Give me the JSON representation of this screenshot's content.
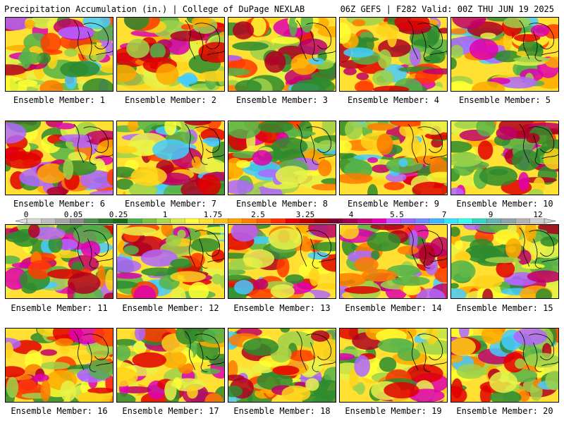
{
  "header": {
    "title": "Precipitation Accumulation (in.) | College of DuPage NEXLAB",
    "run_info": "06Z GEFS | F282 Valid: 00Z THU JUN 19 2025"
  },
  "colorbar": {
    "tick_labels": [
      "0",
      "0.05",
      "0.25",
      "1",
      "1.75",
      "2.5",
      "3.25",
      "4",
      "5.5",
      "7",
      "9",
      "12"
    ],
    "colors": [
      "#d9d9d9",
      "#bfbfbf",
      "#a6a6a6",
      "#8c8c8c",
      "#4f8f4f",
      "#2e7d2e",
      "#1a6b1a",
      "#4caf4c",
      "#7bc043",
      "#a8d84a",
      "#d7ee4a",
      "#ffff33",
      "#ffe033",
      "#ffc21a",
      "#ff9f00",
      "#ff7f00",
      "#ff5a00",
      "#ff2d00",
      "#e60000",
      "#c00000",
      "#990000",
      "#7a0033",
      "#a0004a",
      "#c8007a",
      "#e600b8",
      "#d24cff",
      "#9966ff",
      "#6f8cff",
      "#3fb6ff",
      "#33e6ff",
      "#33ffee",
      "#33d6c6",
      "#66b3b3",
      "#8fa6a6",
      "#b3b3b3",
      "#d0d0d0"
    ]
  },
  "members": [
    {
      "label": "Ensemble Member: 1"
    },
    {
      "label": "Ensemble Member: 2"
    },
    {
      "label": "Ensemble Member: 3"
    },
    {
      "label": "Ensemble Member: 4"
    },
    {
      "label": "Ensemble Member: 5"
    },
    {
      "label": "Ensemble Member: 6"
    },
    {
      "label": "Ensemble Member: 7"
    },
    {
      "label": "Ensemble Member: 8"
    },
    {
      "label": "Ensemble Member: 9"
    },
    {
      "label": "Ensemble Member: 10"
    },
    {
      "label": "Ensemble Member: 11"
    },
    {
      "label": "Ensemble Member: 12"
    },
    {
      "label": "Ensemble Member: 13"
    },
    {
      "label": "Ensemble Member: 14"
    },
    {
      "label": "Ensemble Member: 15"
    },
    {
      "label": "Ensemble Member: 16"
    },
    {
      "label": "Ensemble Member: 17"
    },
    {
      "label": "Ensemble Member: 18"
    },
    {
      "label": "Ensemble Member: 19"
    },
    {
      "label": "Ensemble Member: 20"
    }
  ]
}
